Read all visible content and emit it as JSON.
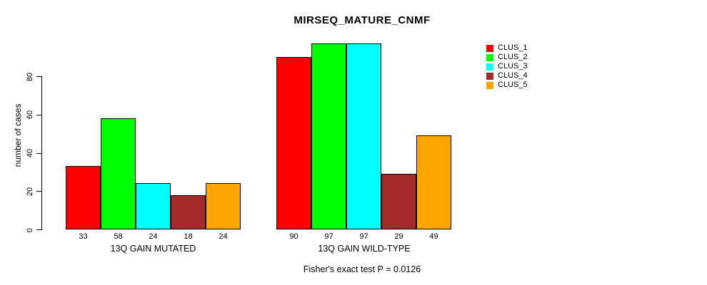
{
  "chart_data": {
    "type": "bar",
    "title": "MIRSEQ_MATURE_CNMF",
    "ylabel": "number of cases",
    "yticks": [
      0,
      20,
      40,
      60,
      80
    ],
    "ylim": [
      0,
      100
    ],
    "grid": false,
    "legend_position": "right-outside",
    "categories": [
      "13Q GAIN MUTATED",
      "13Q GAIN WILD-TYPE"
    ],
    "groups": [
      {
        "label": "13Q GAIN MUTATED",
        "values": [
          33,
          58,
          24,
          18,
          24
        ]
      },
      {
        "label": "13Q GAIN WILD-TYPE",
        "values": [
          90,
          97,
          97,
          29,
          49
        ]
      }
    ],
    "series": [
      "CLUS_1",
      "CLUS_2",
      "CLUS_3",
      "CLUS_4",
      "CLUS_5"
    ],
    "colors": [
      "#FF0000",
      "#00FF00",
      "#00FFFF",
      "#A52A2A",
      "#FFA500"
    ],
    "bar_border_color": "#000000",
    "footer": "Fisher's exact test P = 0.0126"
  }
}
